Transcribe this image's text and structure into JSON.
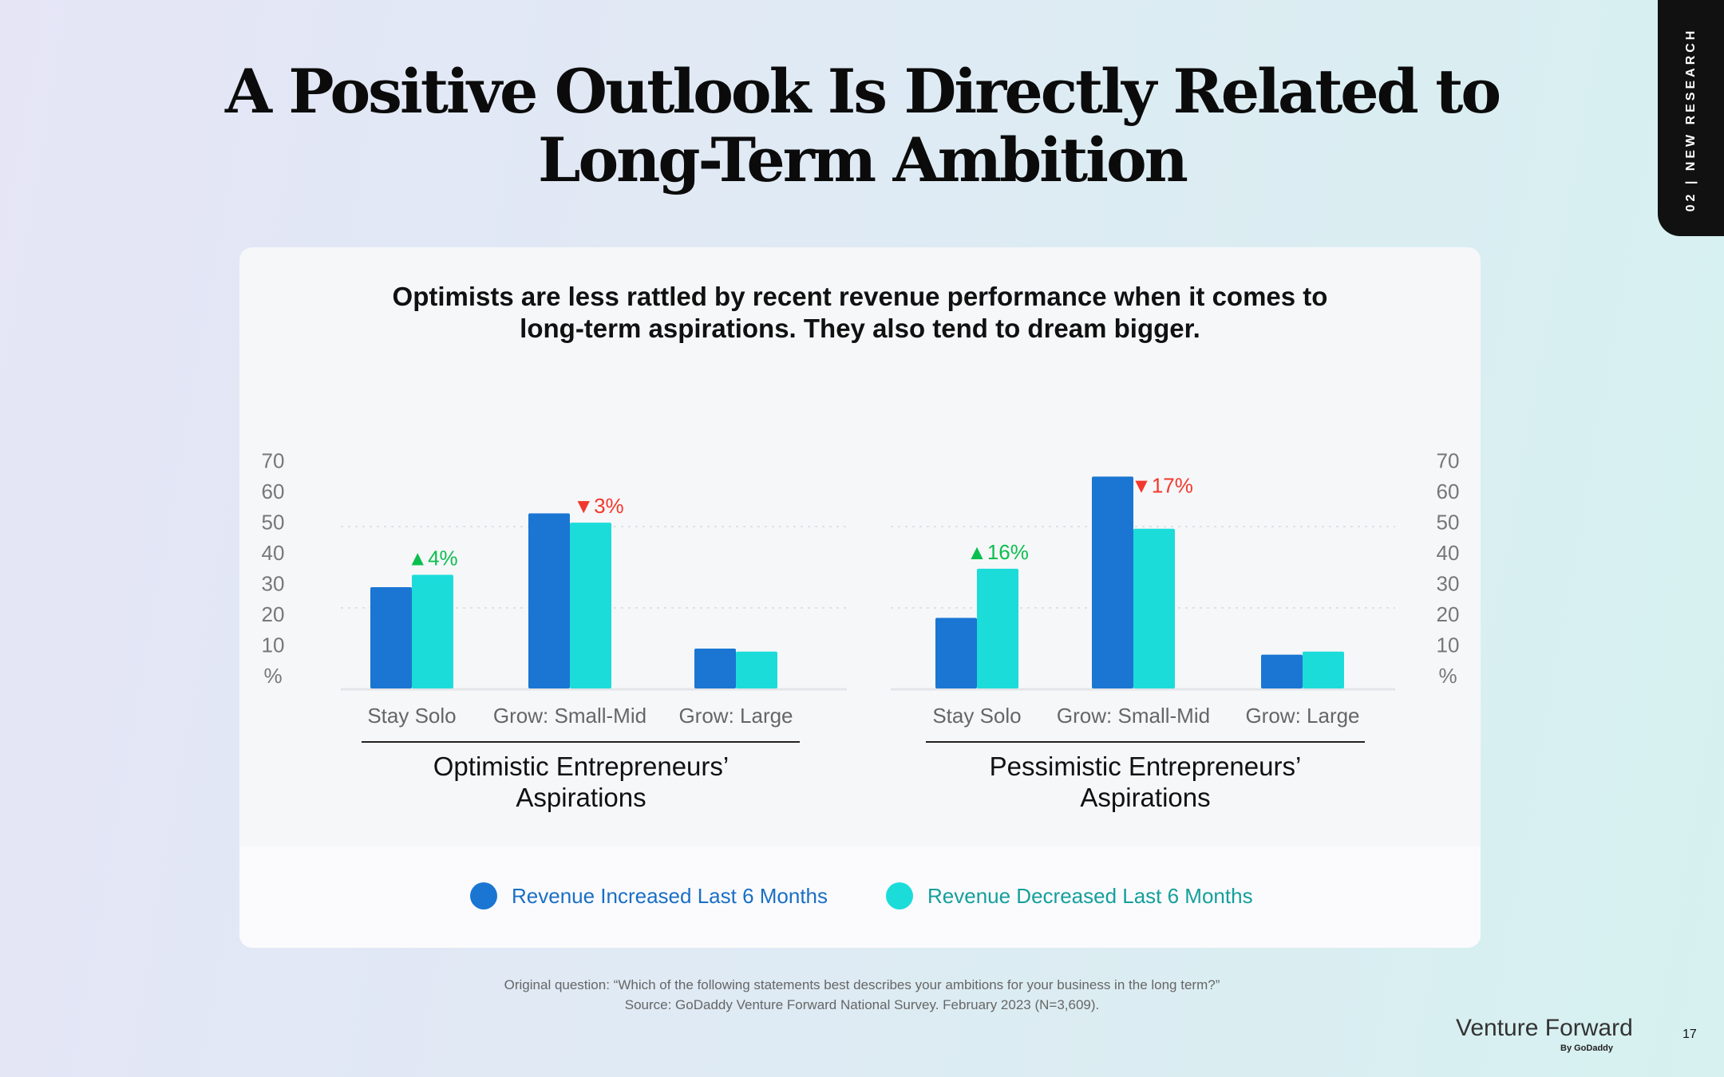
{
  "page_title": [
    "A Positive Outlook Is Directly Related to",
    "Long-Term Ambition"
  ],
  "section_tab": "02 | NEW RESEARCH",
  "subtitle": [
    "Optimists are less rattled by recent revenue performance when it comes to",
    "long-term aspirations. They also tend to dream bigger."
  ],
  "colors": {
    "increased": "#1a76d2",
    "decreased": "#1cdcda",
    "up": "#0bbf4e",
    "down": "#f2382c",
    "increased_text": "#1a6fc4",
    "decreased_text": "#149f9c"
  },
  "chart_data": [
    {
      "type": "bar",
      "title": [
        "Optimistic Entrepreneurs’",
        "Aspirations"
      ],
      "categories": [
        "Stay Solo",
        "Grow: Small-Mid",
        "Grow: Large"
      ],
      "series": [
        {
          "name": "Revenue Increased Last 6 Months",
          "values": [
            33,
            57,
            13
          ]
        },
        {
          "name": "Revenue Decreased Last 6 Months",
          "values": [
            37,
            54,
            12
          ]
        }
      ],
      "annotations": [
        {
          "category": "Stay Solo",
          "text": "▲4%",
          "direction": "up"
        },
        {
          "category": "Grow: Small-Mid",
          "text": "▼3%",
          "direction": "down"
        }
      ],
      "ylabel": "%",
      "yticks": [
        "%",
        "10",
        "20",
        "30",
        "40",
        "50",
        "60",
        "70"
      ],
      "ylim": [
        0,
        70
      ],
      "grid": true
    },
    {
      "type": "bar",
      "title": [
        "Pessimistic Entrepreneurs’",
        "Aspirations"
      ],
      "categories": [
        "Stay Solo",
        "Grow: Small-Mid",
        "Grow: Large"
      ],
      "series": [
        {
          "name": "Revenue Increased Last 6 Months",
          "values": [
            23,
            69,
            11
          ]
        },
        {
          "name": "Revenue Decreased Last 6 Months",
          "values": [
            39,
            52,
            12
          ]
        }
      ],
      "annotations": [
        {
          "category": "Stay Solo",
          "text": "▲16%",
          "direction": "up"
        },
        {
          "category": "Grow: Small-Mid",
          "text": "▼17%",
          "direction": "down"
        }
      ],
      "ylabel": "%",
      "yticks": [
        "%",
        "10",
        "20",
        "30",
        "40",
        "50",
        "60",
        "70"
      ],
      "ylim": [
        0,
        70
      ],
      "grid": true
    }
  ],
  "legend": [
    "Revenue Increased Last 6 Months",
    "Revenue Decreased Last 6 Months"
  ],
  "footnote": [
    "Original question: “Which of the following statements best describes your ambitions for your business in the long term?”",
    "Source: GoDaddy Venture Forward National Survey. February 2023 (N=3,609)."
  ],
  "brand": {
    "name": "Venture Forward",
    "byline": "By GoDaddy"
  },
  "page_number": "17"
}
